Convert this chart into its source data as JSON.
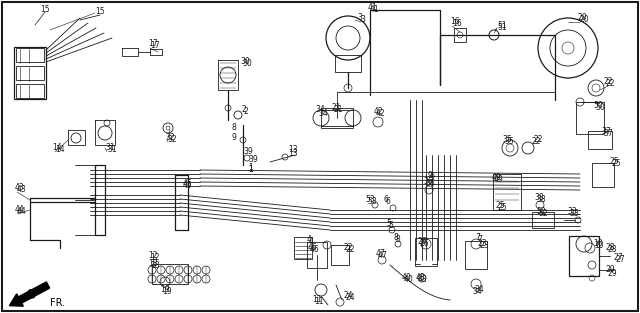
{
  "bg": "#f5f5f5",
  "lc": "#1a1a1a",
  "lc2": "#333333",
  "border": true,
  "figsize": [
    6.4,
    3.13
  ],
  "dpi": 100
}
